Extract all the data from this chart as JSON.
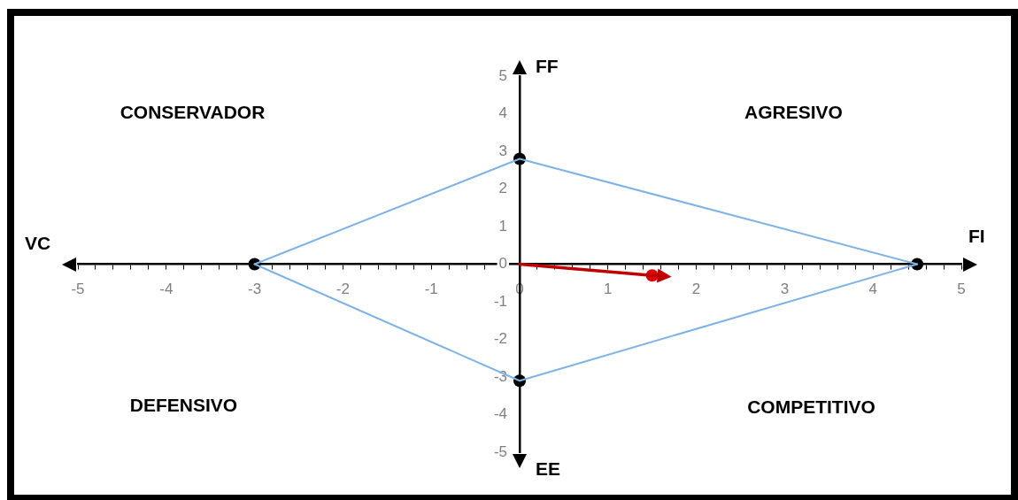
{
  "chart_data": {
    "type": "scatter",
    "xlabel": "FI",
    "ylabel": "FF",
    "annotations": [
      "CONSERVADOR",
      "AGRESIVO",
      "DEFENSIVO",
      "COMPETITIVO",
      "VC",
      "EE"
    ],
    "xlim": [
      -5,
      5
    ],
    "ylim": [
      -5,
      5
    ],
    "xticks": [
      -5,
      {
        "value": -4.8,
        "label": null
      },
      {
        "value": -4.6,
        "label": null
      },
      {
        "value": -4.4,
        "label": null
      },
      {
        "value": -4.2,
        "label": null
      },
      -4,
      {
        "value": -3.8,
        "label": null
      },
      {
        "value": -3.6,
        "label": null
      },
      {
        "value": -3.4,
        "label": null
      },
      {
        "value": -3.2,
        "label": null
      },
      -3,
      {
        "value": -2.8,
        "label": null
      },
      {
        "value": -2.6,
        "label": null
      },
      {
        "value": -2.4,
        "label": null
      },
      {
        "value": -2.2,
        "label": null
      },
      -2,
      {
        "value": -1.8,
        "label": null
      },
      {
        "value": -1.6,
        "label": null
      },
      {
        "value": -1.4,
        "label": null
      },
      {
        "value": -1.2,
        "label": null
      },
      -1,
      {
        "value": -0.8,
        "label": null
      },
      {
        "value": -0.6,
        "label": null
      },
      {
        "value": -0.4,
        "label": null
      },
      {
        "value": -0.2,
        "label": null
      },
      0,
      {
        "value": 0.2,
        "label": null
      },
      {
        "value": 0.4,
        "label": null
      },
      {
        "value": 0.6,
        "label": null
      },
      {
        "value": 0.8,
        "label": null
      },
      1,
      {
        "value": 1.2,
        "label": null
      },
      {
        "value": 1.4,
        "label": null
      },
      {
        "value": 1.6,
        "label": null
      },
      {
        "value": 1.8,
        "label": null
      },
      2,
      {
        "value": 2.2,
        "label": null
      },
      {
        "value": 2.4,
        "label": null
      },
      {
        "value": 2.6,
        "label": null
      },
      {
        "value": 2.8,
        "label": null
      },
      3,
      {
        "value": 3.2,
        "label": null
      },
      {
        "value": 3.4,
        "label": null
      },
      {
        "value": 3.6,
        "label": null
      },
      {
        "value": 3.8,
        "label": null
      },
      4,
      {
        "value": 4.2,
        "label": null
      },
      {
        "value": 4.4,
        "label": null
      },
      {
        "value": 4.6,
        "label": null
      },
      {
        "value": 4.8,
        "label": null
      },
      5
    ],
    "yticks": [
      -5,
      -4,
      -3,
      -2,
      -1,
      0,
      1,
      2,
      3,
      4,
      5
    ],
    "grid": false,
    "legend": false,
    "series": [
      {
        "type": "line",
        "color": "#7fb2e5",
        "marker": "none",
        "line_style": "solid",
        "x": [
          -3,
          0,
          4.5
        ],
        "values": [
          0,
          2.8,
          0
        ]
      },
      {
        "type": "line",
        "color": "#7fb2e5",
        "marker": "none",
        "line_style": "solid",
        "x": [
          -3,
          0,
          4.5
        ],
        "values": [
          0,
          -3.1,
          0
        ]
      },
      {
        "type": "scatter",
        "color": "#000000",
        "marker": "circle",
        "x": [
          -3,
          0,
          4.5,
          0
        ],
        "values": [
          0,
          2.8,
          0,
          -3.1
        ]
      },
      {
        "type": "line",
        "color": "#c00000",
        "marker": "none",
        "line_style": "solid",
        "x": [
          0,
          1.5
        ],
        "values": [
          0,
          -0.3
        ]
      },
      {
        "type": "scatter",
        "color": "#e00000",
        "marker": "circle",
        "x": [
          1.5
        ],
        "values": [
          -0.3
        ]
      }
    ]
  }
}
